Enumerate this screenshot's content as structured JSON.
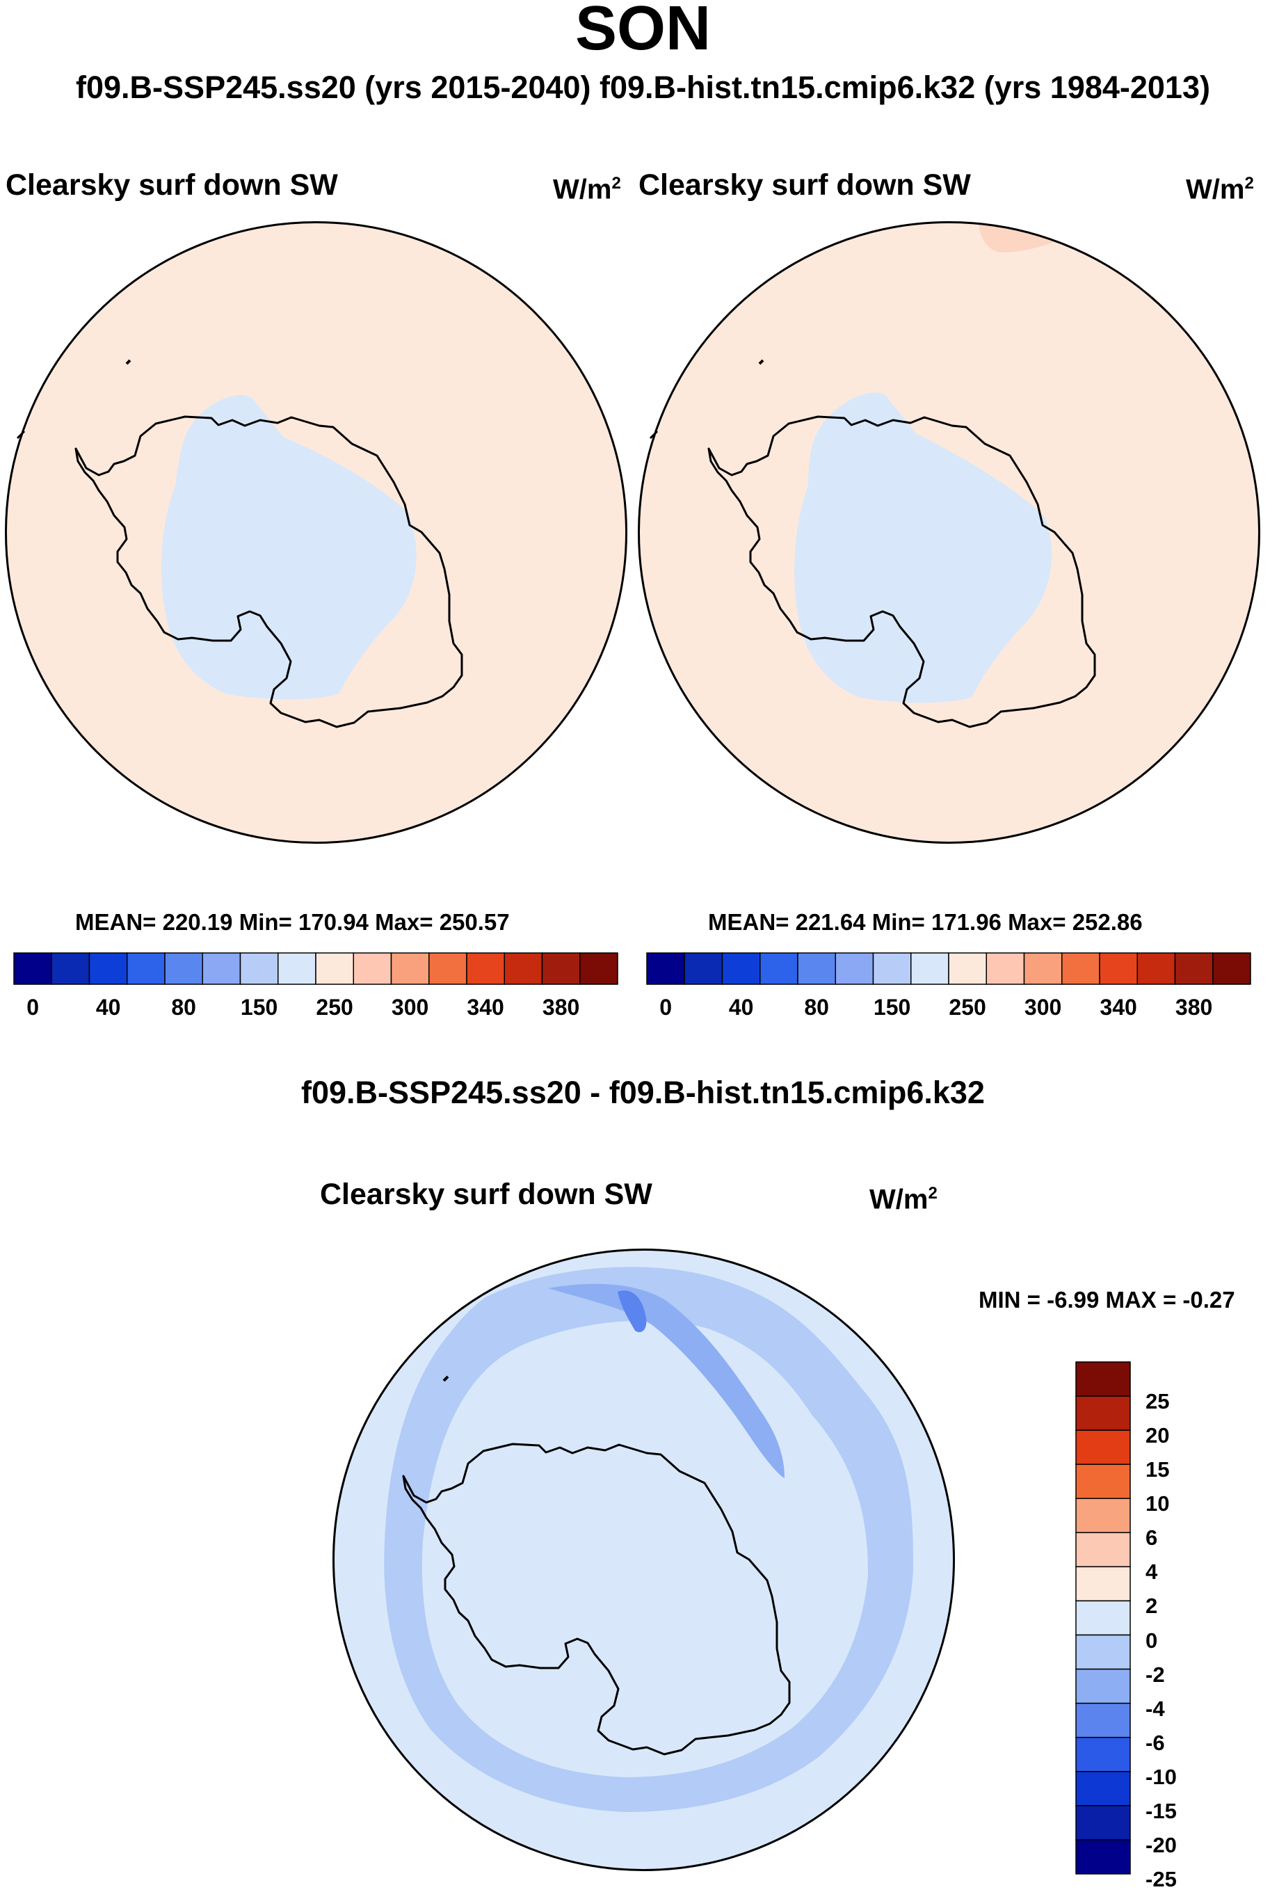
{
  "figure": {
    "season": "SON",
    "subtitle": "f09.B-SSP245.ss20 (yrs 2015-2040)  f09.B-hist.tn15.cmip6.k32 (yrs 1984-2013)",
    "diff_title": "f09.B-SSP245.ss20 - f09.B-hist.tn15.cmip6.k32"
  },
  "panels": {
    "left": {
      "variable": "Clearsky surf down SW",
      "units": "W/m",
      "units_sup": "2",
      "stats": "MEAN= 220.19  Min= 170.94  Max= 250.57"
    },
    "right": {
      "variable": "Clearsky surf down SW",
      "units": "W/m",
      "units_sup": "2",
      "stats": "MEAN= 221.64  Min= 171.96  Max= 252.86"
    },
    "diff": {
      "variable": "Clearsky surf down SW",
      "units": "W/m",
      "units_sup": "2",
      "minmax": "MIN =  -6.99 MAX =  -0.27"
    }
  },
  "abs_colorbar": {
    "colors": [
      "#00008b",
      "#0a2ab4",
      "#0d3fd8",
      "#2d62ea",
      "#5a86f0",
      "#8aa8f4",
      "#b7cdf8",
      "#d8e8fa",
      "#fde9dc",
      "#fdc7b3",
      "#f9a07c",
      "#f2703f",
      "#e5441c",
      "#c62a0f",
      "#a01d0d",
      "#7a0b05"
    ],
    "tick_labels": [
      "0",
      "40",
      "80",
      "150",
      "250",
      "300",
      "340",
      "380"
    ]
  },
  "diff_colorbar": {
    "colors_top_to_bottom": [
      "#7a0b05",
      "#b2210c",
      "#e23d15",
      "#f26a33",
      "#f8a47f",
      "#fcc9b4",
      "#fde9dc",
      "#d8e8fa",
      "#b2cbf7",
      "#8daef3",
      "#5b84ee",
      "#2b5ae8",
      "#0d38d3",
      "#0a1fa8",
      "#00008b"
    ],
    "tick_labels": [
      "25",
      "20",
      "15",
      "10",
      "6",
      "4",
      "2",
      "0",
      "-2",
      "-4",
      "-6",
      "-10",
      "-15",
      "-20",
      "-25"
    ]
  },
  "map_colors": {
    "positive_light": "#fde9dc",
    "positive_mid": "#fcd6c2",
    "negative_light": "#d8e8fa",
    "negative_mid": "#b2cbf7",
    "negative_strong": "#8daef3",
    "negative_deep": "#5b84ee"
  }
}
